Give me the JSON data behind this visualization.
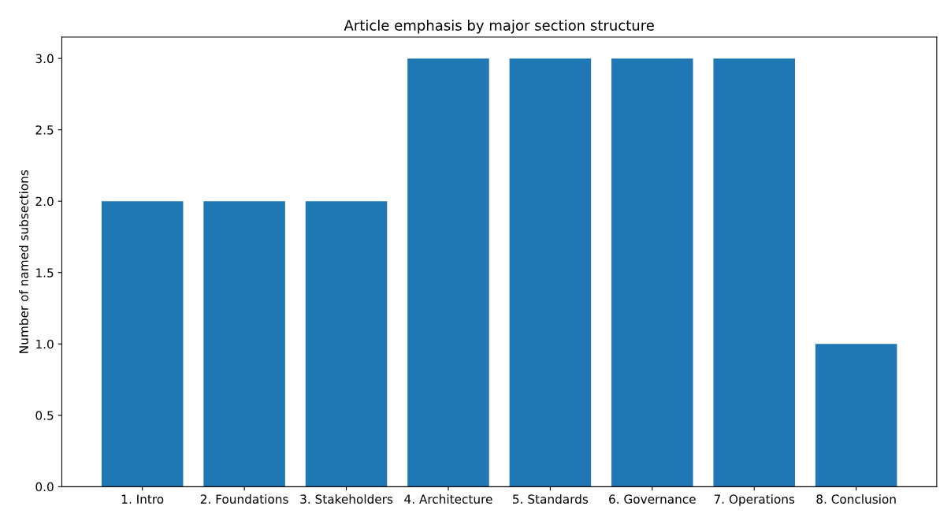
{
  "chart_data": {
    "type": "bar",
    "title": "Article emphasis by major section structure",
    "ylabel": "Number of named subsections",
    "categories": [
      "1. Intro",
      "2. Foundations",
      "3. Stakeholders",
      "4. Architecture",
      "5. Standards",
      "6. Governance",
      "7. Operations",
      "8. Conclusion"
    ],
    "values": [
      2,
      2,
      2,
      3,
      3,
      3,
      3,
      1
    ],
    "color": "#1f77b4",
    "ylim": [
      0,
      3.15
    ],
    "yticks": [
      {
        "value": 0,
        "label": "0.0"
      },
      {
        "value": 0.5,
        "label": "0.5"
      },
      {
        "value": 1,
        "label": "1.0"
      },
      {
        "value": 1.5,
        "label": "1.5"
      },
      {
        "value": 2,
        "label": "2.0"
      },
      {
        "value": 2.5,
        "label": "2.5"
      },
      {
        "value": 3,
        "label": "3.0"
      }
    ],
    "grid": false
  }
}
